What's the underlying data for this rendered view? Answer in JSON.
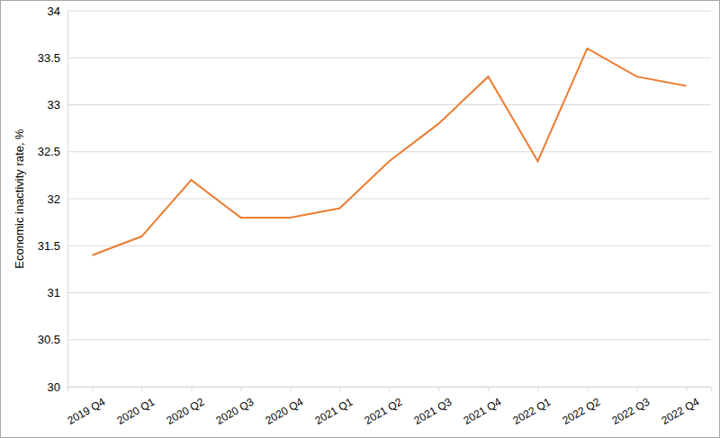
{
  "chart_data": {
    "type": "line",
    "y_label": "Economic inactivity rate, %",
    "categories": [
      "2019 Q4",
      "2020 Q1",
      "2020 Q2",
      "2020 Q3",
      "2020 Q4",
      "2021 Q1",
      "2021 Q2",
      "2021 Q3",
      "2021 Q4",
      "2022 Q1",
      "2022 Q2",
      "2022 Q3",
      "2022 Q4"
    ],
    "values": [
      31.4,
      31.6,
      32.2,
      31.8,
      31.8,
      31.9,
      32.4,
      32.8,
      33.3,
      32.4,
      33.6,
      33.3,
      33.2
    ],
    "color": "#ed7d31",
    "ylim": [
      30,
      34
    ],
    "yticks": [
      30,
      30.5,
      31,
      31.5,
      32,
      32.5,
      33,
      33.5,
      34
    ],
    "grid": true
  }
}
